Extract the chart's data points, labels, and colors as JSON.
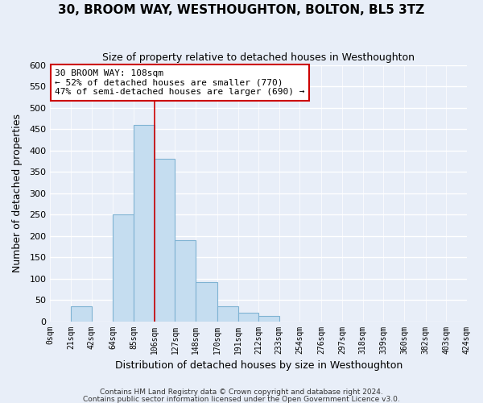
{
  "title": "30, BROOM WAY, WESTHOUGHTON, BOLTON, BL5 3TZ",
  "subtitle": "Size of property relative to detached houses in Westhoughton",
  "xlabel": "Distribution of detached houses by size in Westhoughton",
  "ylabel": "Number of detached properties",
  "bar_color": "#c5ddf0",
  "bar_edge_color": "#7fb3d3",
  "vline_x": 106,
  "vline_color": "#cc0000",
  "bin_edges": [
    0,
    21,
    42,
    64,
    85,
    106,
    127,
    148,
    170,
    191,
    212,
    233,
    254,
    276,
    297,
    318,
    339,
    360,
    382,
    403,
    424
  ],
  "bar_heights": [
    0,
    35,
    0,
    250,
    460,
    380,
    190,
    92,
    35,
    20,
    12,
    0,
    0,
    0,
    0,
    0,
    0,
    0,
    0,
    0
  ],
  "tick_labels": [
    "0sqm",
    "21sqm",
    "42sqm",
    "64sqm",
    "85sqm",
    "106sqm",
    "127sqm",
    "148sqm",
    "170sqm",
    "191sqm",
    "212sqm",
    "233sqm",
    "254sqm",
    "276sqm",
    "297sqm",
    "318sqm",
    "339sqm",
    "360sqm",
    "382sqm",
    "403sqm",
    "424sqm"
  ],
  "ylim": [
    0,
    600
  ],
  "yticks": [
    0,
    50,
    100,
    150,
    200,
    250,
    300,
    350,
    400,
    450,
    500,
    550,
    600
  ],
  "annotation_title": "30 BROOM WAY: 108sqm",
  "annotation_line1": "← 52% of detached houses are smaller (770)",
  "annotation_line2": "47% of semi-detached houses are larger (690) →",
  "annotation_box_color": "white",
  "annotation_box_edge": "#cc0000",
  "footer1": "Contains HM Land Registry data © Crown copyright and database right 2024.",
  "footer2": "Contains public sector information licensed under the Open Government Licence v3.0.",
  "bg_color": "#e8eef8",
  "grid_color": "white"
}
